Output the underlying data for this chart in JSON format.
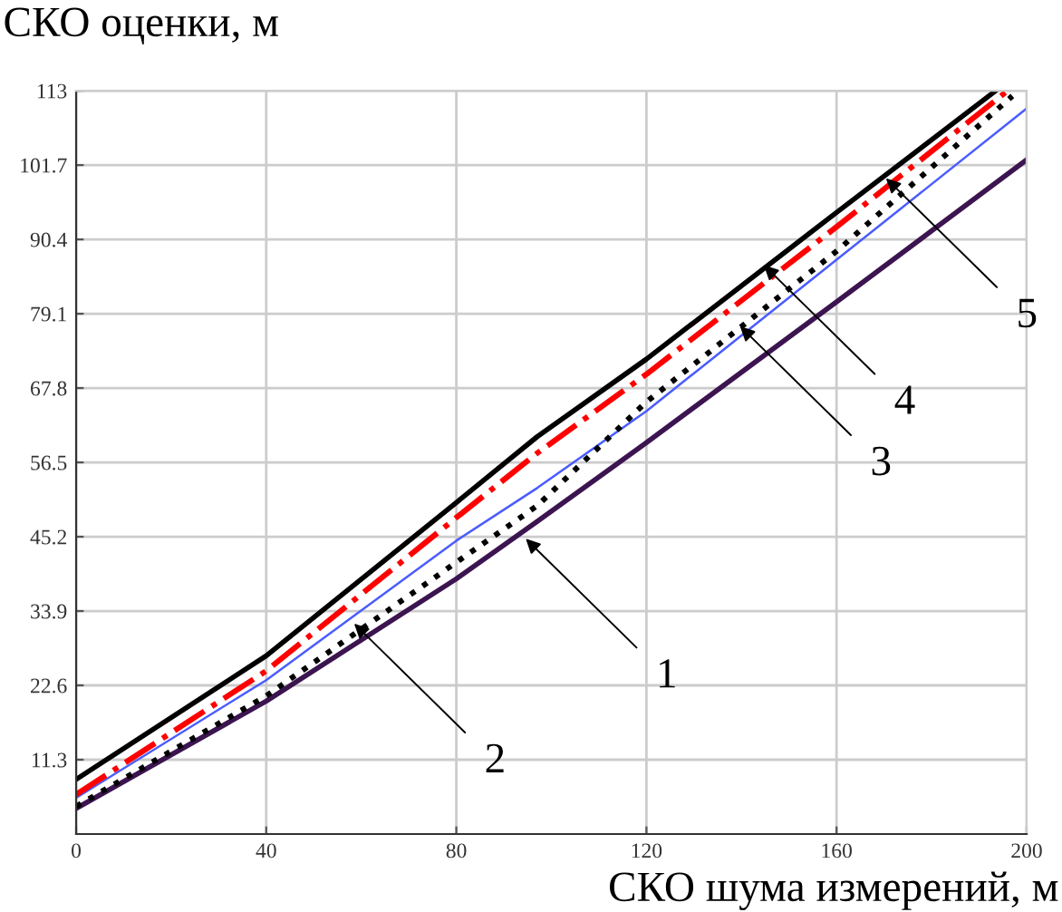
{
  "chart_data": {
    "type": "line",
    "xlabel": "СКО шума измерений, м",
    "ylabel": "СКО оценки, м",
    "xlim": [
      0,
      200
    ],
    "ylim": [
      0,
      113
    ],
    "xticks": [
      0,
      40,
      80,
      120,
      160,
      200
    ],
    "yticks": [
      11.3,
      22.6,
      33.9,
      45.2,
      56.5,
      67.8,
      79.1,
      90.4,
      101.7,
      113
    ],
    "grid": true,
    "series": [
      {
        "color": "#3c1450",
        "line_style": "solid",
        "x": [
          0,
          40,
          80,
          97,
          120,
          160,
          200
        ],
        "values": [
          3.9,
          20.2,
          38.8,
          47.5,
          59.5,
          80.9,
          102.5
        ]
      },
      {
        "color": "#4a5cff",
        "line_style": "solid",
        "x": [
          0,
          40,
          80,
          97,
          120,
          160,
          200
        ],
        "values": [
          5.5,
          23.4,
          44.6,
          52.6,
          64.3,
          87.3,
          110.3
        ]
      },
      {
        "color": "#000000",
        "line_style": "dotted",
        "x": [
          0,
          40,
          80,
          97,
          120,
          160,
          197
        ],
        "values": [
          4.2,
          21,
          41.3,
          49.9,
          65.7,
          88.6,
          112.2
        ]
      },
      {
        "color": "#000000",
        "line_style": "solid",
        "x": [
          0,
          40,
          80,
          97,
          120,
          160,
          193.5
        ],
        "values": [
          8.3,
          27.1,
          50.4,
          60.4,
          72.2,
          94.5,
          113
        ]
      },
      {
        "color": "#ff0000",
        "line_style": "dashdot",
        "x": [
          0,
          40,
          80,
          97,
          120,
          160,
          196
        ],
        "values": [
          6.0,
          24.8,
          48.1,
          57.9,
          69.9,
          92.3,
          113
        ]
      }
    ],
    "annotations": [
      {
        "text": "1",
        "x": 94.6,
        "y": 44.9
      },
      {
        "text": "2",
        "x": 58.5,
        "y": 32
      },
      {
        "text": "3",
        "x": 139.7,
        "y": 77.2
      },
      {
        "text": "4",
        "x": 144.7,
        "y": 86.5
      },
      {
        "text": "5",
        "x": 170.4,
        "y": 99.7
      }
    ]
  }
}
